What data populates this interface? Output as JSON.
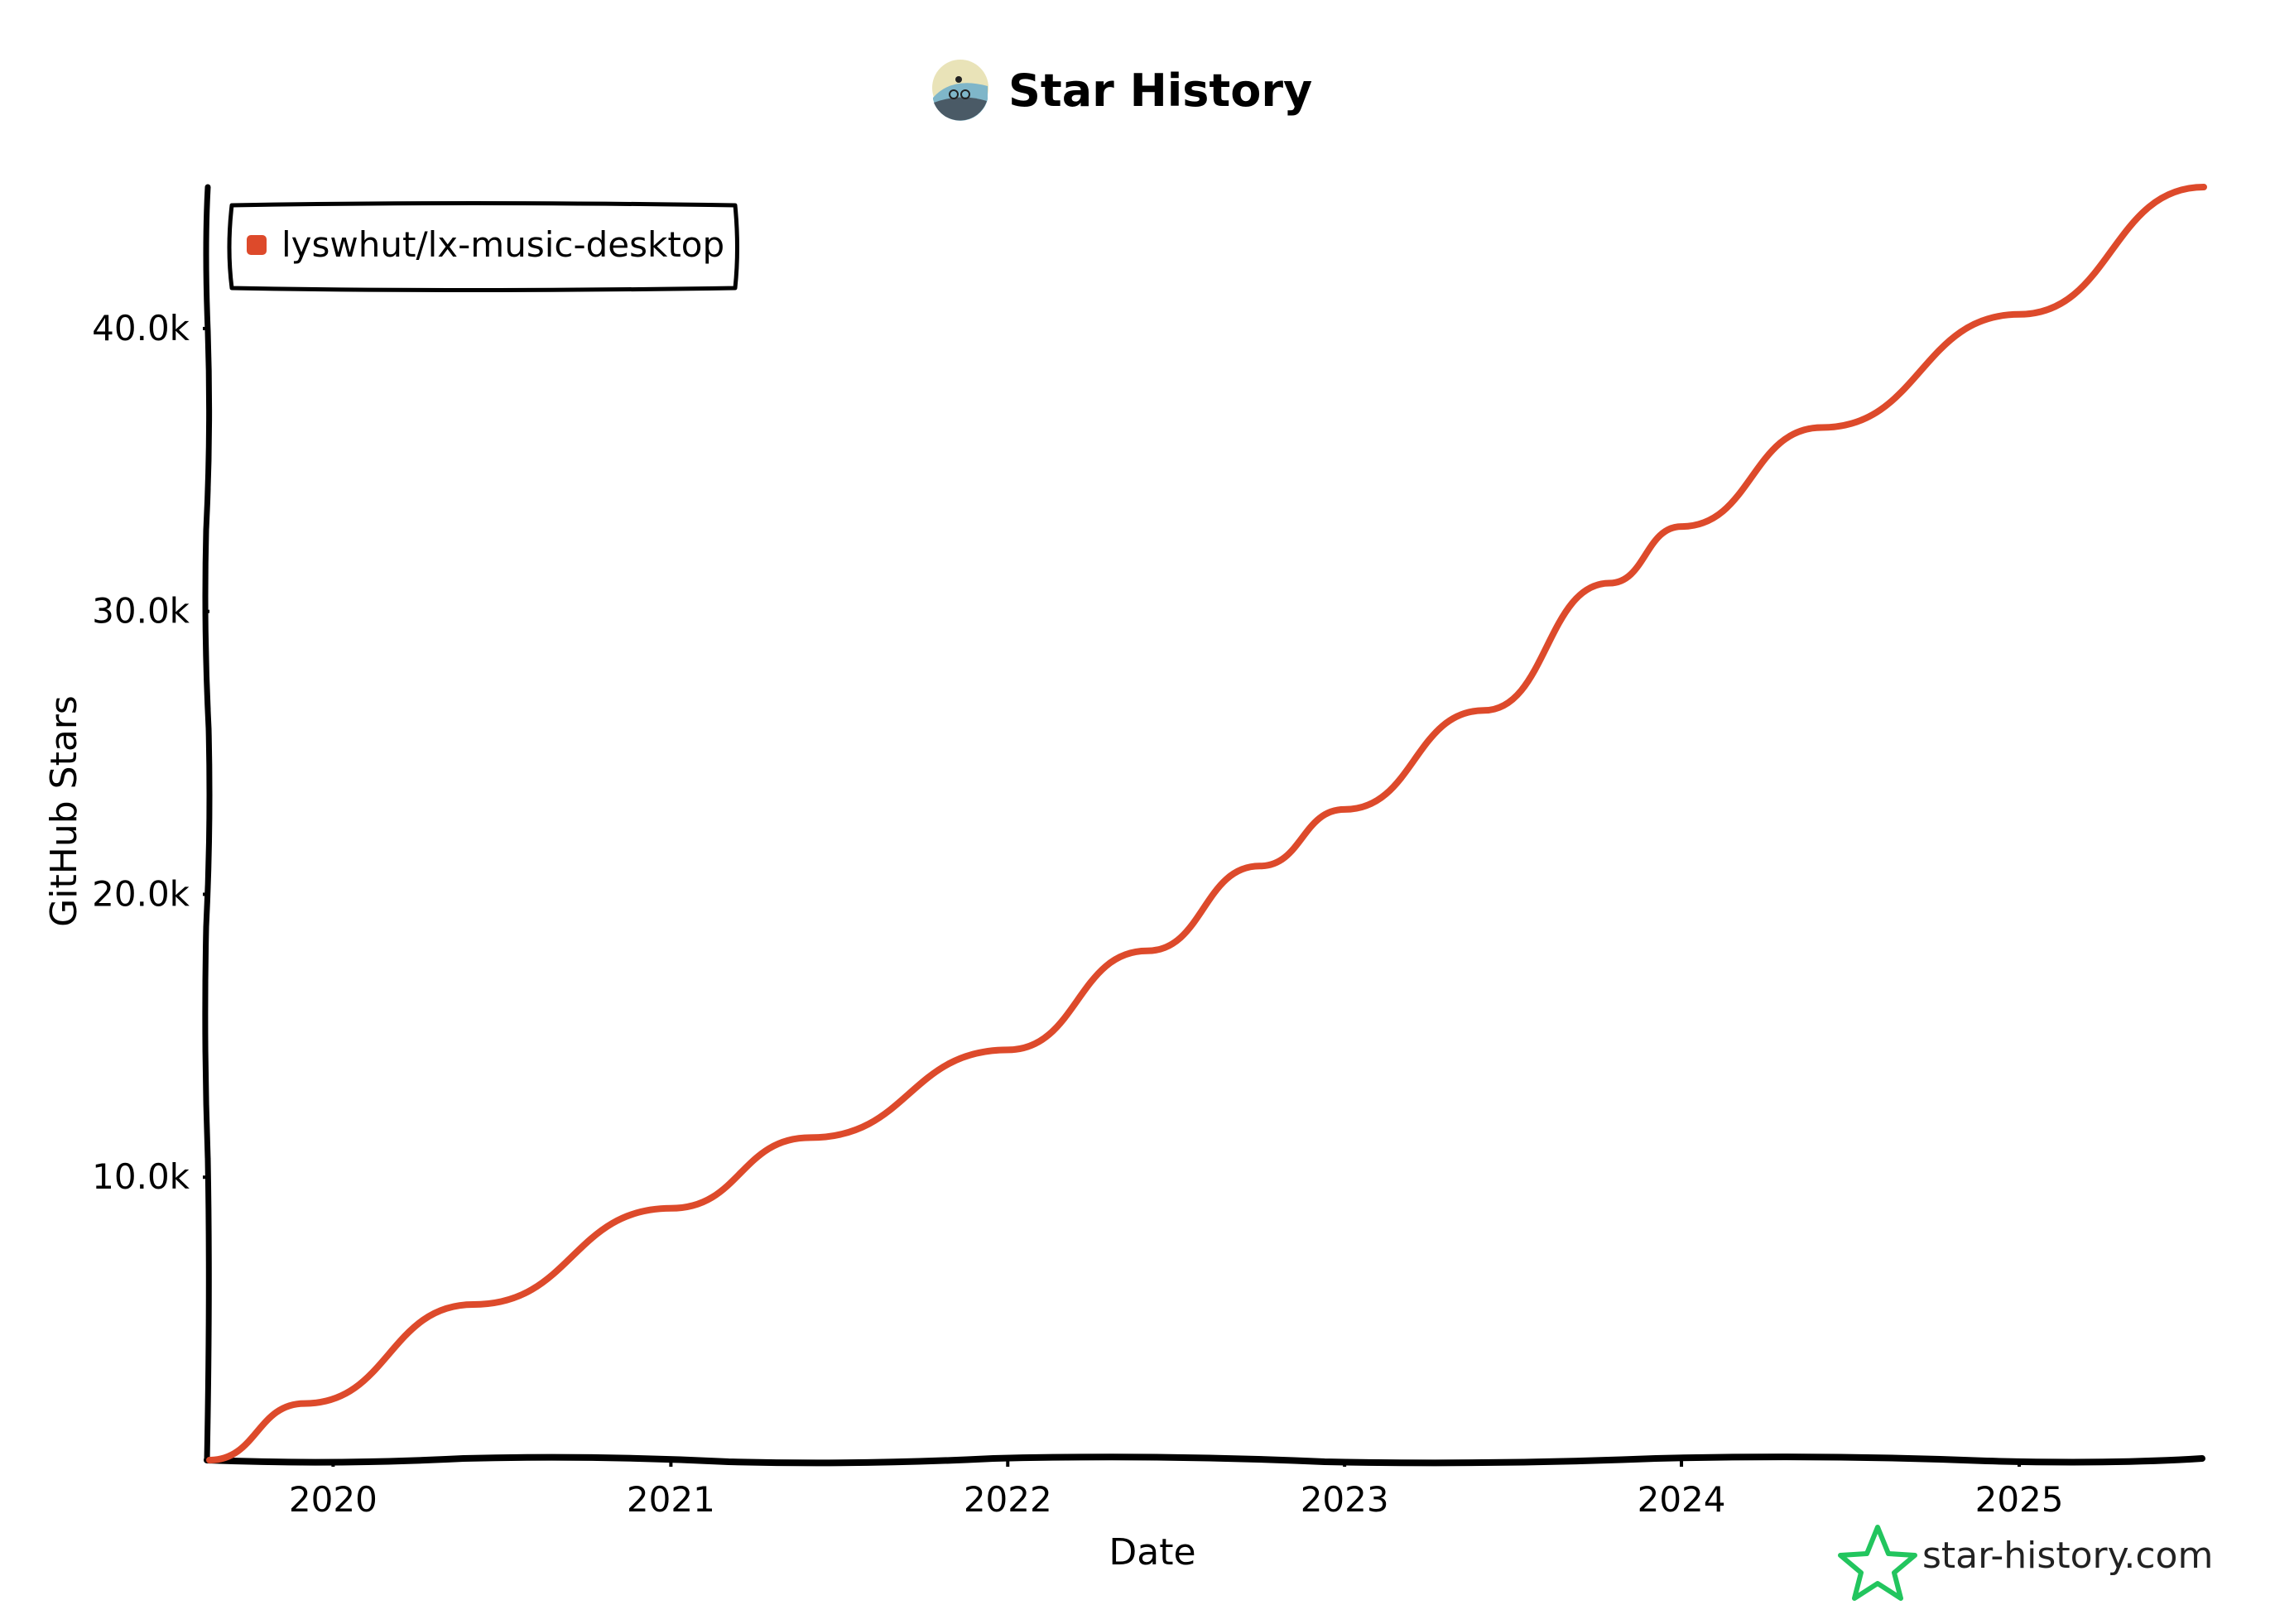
{
  "header": {
    "title": "Star History"
  },
  "brand": {
    "text": "star-history.com",
    "icon": "star-outline-icon",
    "icon_color": "#22c55e"
  },
  "colors": {
    "series": "#dd4a2b",
    "axis": "#000000",
    "legend_border": "#000000"
  },
  "chart_data": {
    "type": "line",
    "title": "Star History",
    "xlabel": "Date",
    "ylabel": "GitHub Stars",
    "x_type": "date",
    "xlim": [
      "2019-08-20",
      "2025-07-20"
    ],
    "ylim": [
      0,
      45000
    ],
    "x_ticks": [
      {
        "date": "2020-01-01",
        "label": "2020"
      },
      {
        "date": "2021-01-01",
        "label": "2021"
      },
      {
        "date": "2022-01-01",
        "label": "2022"
      },
      {
        "date": "2023-01-01",
        "label": "2023"
      },
      {
        "date": "2024-01-01",
        "label": "2024"
      },
      {
        "date": "2025-01-01",
        "label": "2025"
      }
    ],
    "y_ticks": [
      {
        "value": 10000,
        "label": "10.0k"
      },
      {
        "value": 20000,
        "label": "20.0k"
      },
      {
        "value": 30000,
        "label": "30.0k"
      },
      {
        "value": 40000,
        "label": "40.0k"
      }
    ],
    "legend": "top-left",
    "grid": false,
    "series": [
      {
        "name": "lyswhut/lx-music-desktop",
        "x": [
          "2019-08-20",
          "2019-12-01",
          "2020-06-01",
          "2021-01-01",
          "2021-06-01",
          "2022-01-01",
          "2022-06-01",
          "2022-10-01",
          "2023-01-01",
          "2023-06-01",
          "2023-10-15",
          "2024-01-01",
          "2024-06-01",
          "2025-01-01",
          "2025-07-20"
        ],
        "y": [
          0,
          2000,
          5500,
          8900,
          11400,
          14500,
          18000,
          21000,
          23000,
          26500,
          31000,
          33000,
          36500,
          40500,
          45000
        ]
      }
    ]
  }
}
